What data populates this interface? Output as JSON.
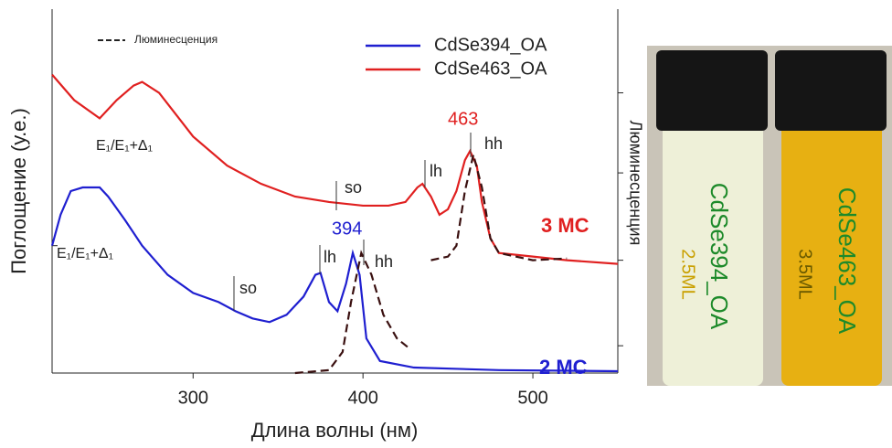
{
  "chart_data": {
    "type": "line",
    "x_label": "Длина волны (нм)",
    "y_label": "Поглощение (у.е.)",
    "y2_label": "Люминесценция",
    "xlim": [
      217,
      550
    ],
    "xticks": [
      300,
      400,
      500
    ],
    "ylim": [
      0,
      1
    ],
    "yticks": [
      0.35
    ],
    "y2lim": [
      0,
      1
    ],
    "y2ticks": [
      0.075,
      0.31,
      0.55,
      0.77
    ],
    "luminescence_legend": "Люминесценция",
    "series": [
      {
        "name": "CdSe394_OA",
        "color": "#1f1fd0",
        "x": [
          217,
          222,
          228,
          235,
          245,
          250,
          260,
          270,
          285,
          300,
          315,
          325,
          335,
          345,
          355,
          365,
          372,
          375,
          380,
          385,
          390,
          394,
          398,
          402,
          410,
          430,
          480,
          550
        ],
        "values": [
          0.35,
          0.435,
          0.5,
          0.51,
          0.51,
          0.485,
          0.42,
          0.35,
          0.27,
          0.22,
          0.195,
          0.17,
          0.15,
          0.14,
          0.16,
          0.21,
          0.27,
          0.275,
          0.195,
          0.17,
          0.245,
          0.33,
          0.27,
          0.095,
          0.033,
          0.015,
          0.008,
          0.005
        ],
        "lum_x": [
          360,
          380,
          388,
          393,
          399,
          405,
          412,
          420,
          428
        ],
        "lum_values": [
          0,
          0.008,
          0.058,
          0.196,
          0.33,
          0.27,
          0.16,
          0.095,
          0.065
        ]
      },
      {
        "name": "CdSe463_OA",
        "color": "#e02020",
        "x": [
          217,
          230,
          245,
          255,
          265,
          270,
          280,
          290,
          300,
          320,
          340,
          360,
          380,
          400,
          415,
          425,
          432,
          435,
          440,
          445,
          450,
          455,
          460,
          463,
          467,
          470,
          475,
          480,
          500,
          520,
          550
        ],
        "values": [
          0.82,
          0.75,
          0.7,
          0.75,
          0.79,
          0.8,
          0.77,
          0.71,
          0.65,
          0.57,
          0.52,
          0.485,
          0.47,
          0.46,
          0.46,
          0.47,
          0.51,
          0.52,
          0.485,
          0.435,
          0.45,
          0.5,
          0.585,
          0.61,
          0.57,
          0.47,
          0.37,
          0.33,
          0.32,
          0.31,
          0.3
        ],
        "lum_x": [
          440,
          450,
          455,
          460,
          465,
          470,
          475,
          480,
          500,
          520
        ],
        "lum_values": [
          0.31,
          0.32,
          0.35,
          0.5,
          0.6,
          0.51,
          0.37,
          0.33,
          0.31,
          0.315
        ]
      }
    ],
    "annotations": [
      "E₁/E₁+Δ₁",
      "so",
      "lh",
      "hh",
      "463",
      "3 MC",
      "E₁/E₁+Δ₁",
      "so",
      "lh",
      "hh",
      "394",
      "2 MC"
    ]
  },
  "photo": {
    "labels": [
      "CdSe394_OA",
      "2.5ML",
      "CdSe463_OA",
      "3.5ML"
    ]
  }
}
